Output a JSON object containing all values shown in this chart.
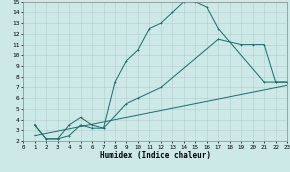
{
  "xlabel": "Humidex (Indice chaleur)",
  "xlim": [
    0,
    23
  ],
  "ylim": [
    2,
    15
  ],
  "xticks": [
    0,
    1,
    2,
    3,
    4,
    5,
    6,
    7,
    8,
    9,
    10,
    11,
    12,
    13,
    14,
    15,
    16,
    17,
    18,
    19,
    20,
    21,
    22,
    23
  ],
  "yticks": [
    2,
    3,
    4,
    5,
    6,
    7,
    8,
    9,
    10,
    11,
    12,
    13,
    14,
    15
  ],
  "bg_color": "#cce9e7",
  "grid_color": "#b8d4d2",
  "line_color": "#1a6b6b",
  "line1_x": [
    1,
    2,
    3,
    4,
    5,
    6,
    7,
    8,
    9,
    10,
    11,
    12,
    13,
    14,
    15,
    16,
    17,
    21,
    22,
    23
  ],
  "line1_y": [
    3.5,
    2.2,
    2.2,
    2.5,
    3.5,
    3.2,
    3.2,
    7.5,
    9.5,
    10.5,
    12.5,
    13.0,
    14.0,
    15.0,
    15.0,
    14.5,
    12.5,
    7.5,
    7.5,
    7.5
  ],
  "line2_x": [
    1,
    2,
    3,
    4,
    5,
    6,
    7,
    9,
    10,
    12,
    17,
    19,
    20,
    21,
    22,
    23
  ],
  "line2_y": [
    3.5,
    2.2,
    2.2,
    3.5,
    4.2,
    3.5,
    3.2,
    5.5,
    6.0,
    7.0,
    11.5,
    11.0,
    11.0,
    11.0,
    7.5,
    7.5
  ],
  "line3_x": [
    1,
    23
  ],
  "line3_y": [
    2.5,
    7.2
  ]
}
